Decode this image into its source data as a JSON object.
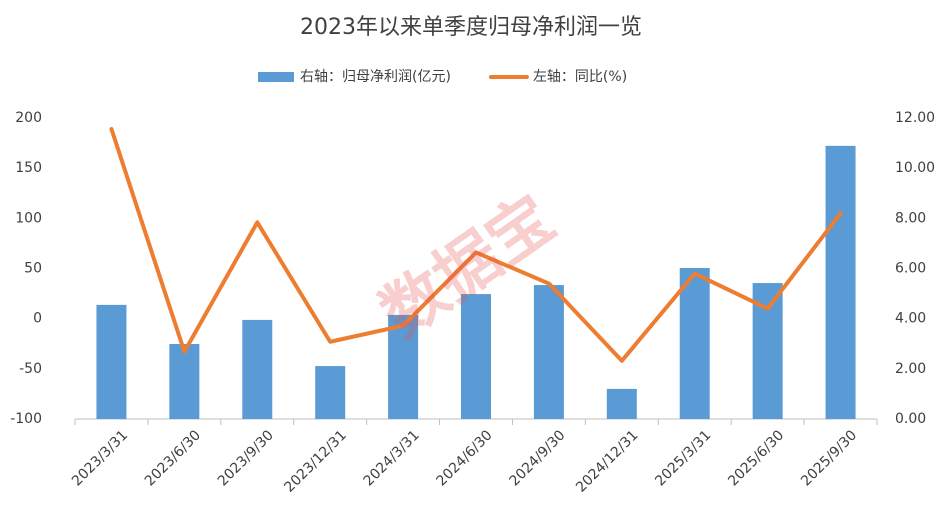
{
  "chart_data": {
    "type": "bar-line",
    "title": "2023年以来单季度归母净利润一览",
    "watermark": "数据宝",
    "categories": [
      "2023/3/31",
      "2023/6/30",
      "2023/9/30",
      "2023/12/31",
      "2024/3/31",
      "2024/6/30",
      "2024/9/30",
      "2024/12/31",
      "2025/3/31",
      "2025/6/30",
      "2025/9/30"
    ],
    "series": [
      {
        "name": "右轴：归母净利润(亿元)",
        "type": "bar",
        "axis": "y2",
        "color": "#5b9bd5",
        "values": [
          4.55,
          2.99,
          3.95,
          2.11,
          4.15,
          4.98,
          5.34,
          1.2,
          6.02,
          5.42,
          10.89
        ]
      },
      {
        "name": "左轴：同比(%)",
        "type": "line",
        "color": "#ed7d31",
        "values": [
          189,
          -33,
          96,
          -23,
          -7,
          66,
          35,
          -42,
          45,
          10,
          105
        ]
      }
    ],
    "ylim": [
      -100,
      200
    ],
    "yticks": [
      -100,
      -50,
      0,
      50,
      100,
      150,
      200
    ],
    "y2lim": [
      0,
      12
    ],
    "y2ticks": [
      {
        "value": 0,
        "label": "0.00"
      },
      {
        "value": 2,
        "label": "2.00"
      },
      {
        "value": 4,
        "label": "4.00"
      },
      {
        "value": 6,
        "label": "6.00"
      },
      {
        "value": 8,
        "label": "8.00"
      },
      {
        "value": 10,
        "label": "10.00"
      },
      {
        "value": 12,
        "label": "12.00"
      }
    ],
    "grid": false,
    "legend": "top"
  }
}
